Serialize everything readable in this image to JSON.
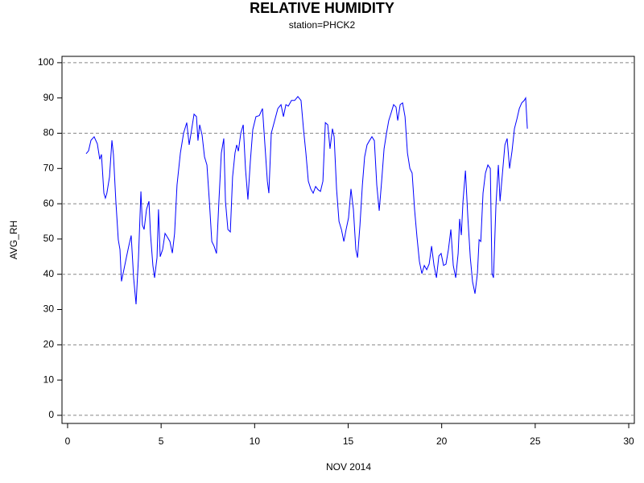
{
  "chart_data": {
    "type": "line",
    "title": "RELATIVE HUMIDITY",
    "subtitle": "station=PHCK2",
    "x_label": "NOV 2014",
    "y_label": "AVG_RH",
    "xlim": [
      -0.3,
      30.3
    ],
    "ylim": [
      -2.3,
      101.8
    ],
    "xticks": [
      0,
      5,
      10,
      15,
      20,
      25,
      30
    ],
    "yticks": [
      0,
      10,
      20,
      30,
      40,
      50,
      60,
      70,
      80,
      90,
      100
    ],
    "ygrid": [
      0,
      20,
      40,
      60,
      80,
      100
    ],
    "grid": true,
    "x": [
      0.99,
      1.12,
      1.25,
      1.42,
      1.59,
      1.72,
      1.81,
      1.94,
      2.02,
      2.1,
      2.24,
      2.37,
      2.45,
      2.58,
      2.71,
      2.8,
      2.88,
      3.01,
      3.14,
      3.27,
      3.4,
      3.53,
      3.66,
      3.79,
      3.92,
      4.0,
      4.09,
      4.22,
      4.35,
      4.43,
      4.56,
      4.65,
      4.78,
      4.86,
      4.95,
      5.08,
      5.21,
      5.34,
      5.47,
      5.6,
      5.72,
      5.85,
      6.03,
      6.2,
      6.37,
      6.5,
      6.63,
      6.76,
      6.89,
      6.97,
      7.06,
      7.19,
      7.32,
      7.45,
      7.58,
      7.71,
      7.83,
      7.96,
      8.09,
      8.22,
      8.35,
      8.44,
      8.57,
      8.7,
      8.82,
      8.95,
      9.04,
      9.13,
      9.26,
      9.39,
      9.51,
      9.64,
      9.77,
      9.9,
      10.07,
      10.25,
      10.42,
      10.55,
      10.68,
      10.76,
      10.89,
      11.07,
      11.24,
      11.41,
      11.54,
      11.67,
      11.8,
      11.97,
      12.14,
      12.31,
      12.48,
      12.61,
      12.74,
      12.87,
      13.0,
      13.13,
      13.26,
      13.39,
      13.52,
      13.65,
      13.78,
      13.91,
      14.03,
      14.16,
      14.25,
      14.38,
      14.51,
      14.64,
      14.77,
      14.89,
      15.02,
      15.15,
      15.28,
      15.41,
      15.5,
      15.63,
      15.76,
      15.88,
      16.01,
      16.14,
      16.27,
      16.4,
      16.53,
      16.66,
      16.79,
      16.92,
      17.05,
      17.17,
      17.3,
      17.43,
      17.56,
      17.65,
      17.78,
      17.91,
      18.04,
      18.17,
      18.3,
      18.42,
      18.55,
      18.68,
      18.81,
      18.94,
      19.07,
      19.2,
      19.33,
      19.46,
      19.59,
      19.72,
      19.85,
      19.97,
      20.1,
      20.23,
      20.36,
      20.49,
      20.62,
      20.75,
      20.88,
      20.96,
      21.05,
      21.14,
      21.27,
      21.4,
      21.53,
      21.65,
      21.78,
      21.91,
      22.0,
      22.09,
      22.21,
      22.34,
      22.47,
      22.6,
      22.69,
      22.77,
      22.9,
      23.03,
      23.12,
      23.25,
      23.38,
      23.5,
      23.63,
      23.76,
      23.89,
      24.02,
      24.15,
      24.28,
      24.41,
      24.49,
      24.58
    ],
    "series": [
      {
        "name": "AVG_RH",
        "color": "#0000ff",
        "values": [
          74.2,
          75,
          78,
          79,
          77,
          72.6,
          74,
          63,
          61.6,
          63,
          67.6,
          78,
          74,
          60.7,
          49.8,
          47,
          38,
          41.3,
          44.7,
          48,
          51,
          39,
          31.5,
          44.7,
          63.5,
          54,
          52.7,
          58.4,
          60.7,
          51.6,
          42.5,
          39,
          44.7,
          58.4,
          45,
          47,
          51.6,
          50.5,
          49.3,
          46,
          51.6,
          65.3,
          74.4,
          80,
          83,
          76.7,
          81,
          85.4,
          84.7,
          77.9,
          82.4,
          79.5,
          73.3,
          71,
          60.7,
          49.3,
          48,
          45.9,
          60.7,
          74.4,
          78.5,
          60.7,
          52.7,
          52,
          67.6,
          74.4,
          76.7,
          74.9,
          80,
          82.4,
          70,
          61.2,
          72,
          81,
          84.7,
          85,
          87,
          76.7,
          66.4,
          63,
          80,
          83.6,
          87,
          88.1,
          84.7,
          88.1,
          87.7,
          89.3,
          89.3,
          90.4,
          89.3,
          81.3,
          74.4,
          66.4,
          64.2,
          63,
          64.9,
          64,
          63.5,
          66.4,
          83,
          82.4,
          75.6,
          81.3,
          79,
          64.2,
          55,
          52.7,
          49.3,
          52.7,
          56,
          64.2,
          58.4,
          47,
          44.7,
          53.9,
          65.3,
          73.3,
          76.7,
          77.9,
          79,
          77.9,
          65.3,
          58,
          66.4,
          75.6,
          80,
          83.6,
          85.8,
          88.1,
          87.4,
          83.6,
          88.1,
          88.6,
          84.7,
          74.4,
          70,
          68.7,
          58.4,
          50.5,
          43.6,
          40.2,
          42.5,
          41.3,
          42.9,
          48,
          42.5,
          39,
          45.2,
          45.9,
          42.5,
          42.9,
          47,
          52.7,
          42.5,
          39,
          45.9,
          55.7,
          51.1,
          60.7,
          69.4,
          56,
          44.7,
          37.9,
          34.5,
          40.2,
          49.8,
          49.3,
          63,
          68.7,
          71,
          70,
          40.2,
          39,
          59.6,
          71,
          60.7,
          68.7,
          76.7,
          78.5,
          70,
          74.9,
          81.3,
          84,
          87,
          88.6,
          89.3,
          90,
          81.3
        ]
      }
    ]
  }
}
